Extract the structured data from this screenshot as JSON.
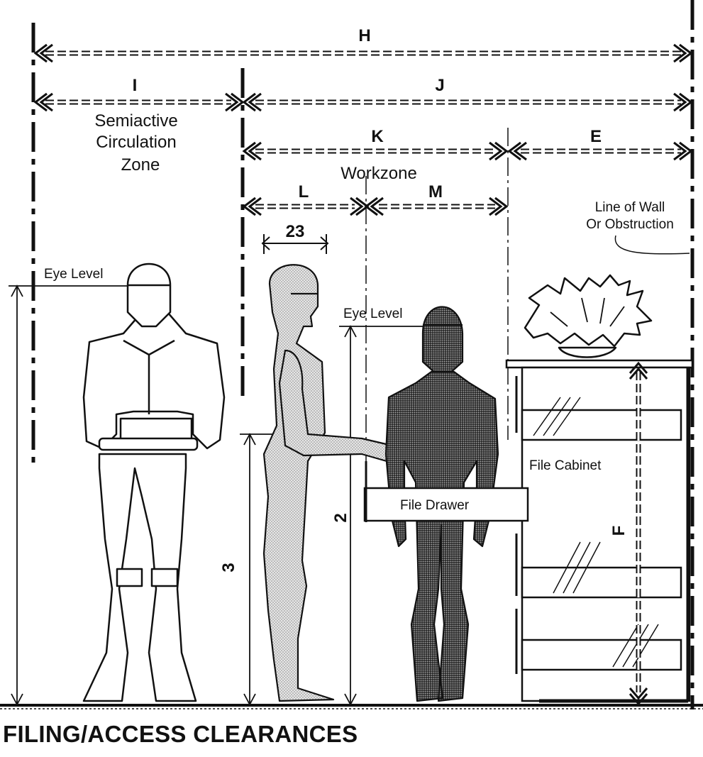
{
  "title": "FILING/ACCESS CLEARANCES",
  "dimensions": {
    "H": "H",
    "I": "I",
    "J": "J",
    "K": "K",
    "E": "E",
    "L": "L",
    "M": "M",
    "dim_23": "23",
    "F": "F",
    "dim_2": "2",
    "dim_3": "3"
  },
  "labels": {
    "zone_line1": "Semiactive",
    "zone_line2": "Circulation",
    "zone_line3": "Zone",
    "workzone": "Workzone",
    "wall_line1": "Line of Wall",
    "wall_line2": "Or Obstruction",
    "eye_level_left": "Eye Level",
    "eye_level_right": "Eye Level",
    "file_cabinet": "File Cabinet",
    "file_drawer": "File Drawer"
  }
}
